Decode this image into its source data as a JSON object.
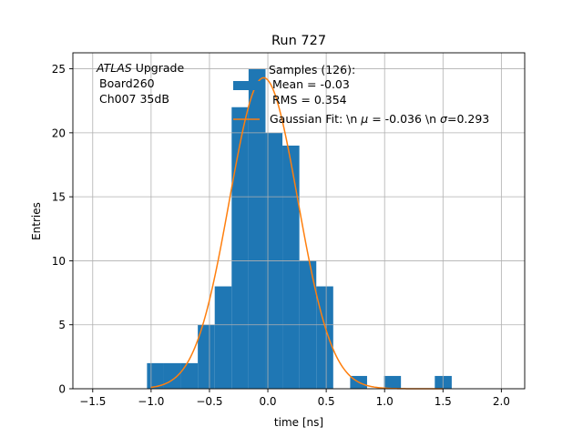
{
  "chart_data": {
    "type": "bar",
    "title": "Run 727",
    "xlabel": "time [ns]",
    "ylabel": "Entries",
    "xlim": [
      -1.67,
      2.2
    ],
    "ylim": [
      0,
      26.25
    ],
    "xticks": [
      -1.5,
      -1.0,
      -0.5,
      0.0,
      0.5,
      1.0,
      1.5,
      2.0
    ],
    "xtick_labels": [
      "−1.5",
      "−1.0",
      "−0.5",
      "0.0",
      "0.5",
      "1.0",
      "1.5",
      "2.0"
    ],
    "yticks": [
      0,
      5,
      10,
      15,
      20,
      25
    ],
    "ytick_labels": [
      "0",
      "5",
      "10",
      "15",
      "20",
      "25"
    ],
    "grid": true,
    "bin_width": 0.145,
    "bins": [
      {
        "x0": -1.035,
        "count": 2
      },
      {
        "x0": -0.89,
        "count": 2
      },
      {
        "x0": -0.745,
        "count": 2
      },
      {
        "x0": -0.6,
        "count": 5
      },
      {
        "x0": -0.455,
        "count": 8
      },
      {
        "x0": -0.31,
        "count": 22
      },
      {
        "x0": -0.165,
        "count": 25
      },
      {
        "x0": -0.02,
        "count": 20
      },
      {
        "x0": 0.125,
        "count": 19
      },
      {
        "x0": 0.27,
        "count": 10
      },
      {
        "x0": 0.415,
        "count": 8
      },
      {
        "x0": 0.705,
        "count": 1
      },
      {
        "x0": 0.995,
        "count": 1
      },
      {
        "x0": 1.43,
        "count": 1
      }
    ],
    "fit": {
      "name": "Gaussian Fit",
      "amplitude": 24.3,
      "mu": -0.036,
      "sigma": 0.293,
      "x_range": [
        -1.0,
        1.5
      ]
    },
    "colors": {
      "hist": "#1f77b4",
      "fit": "#ff7f0e",
      "grid": "#b0b0b0"
    },
    "annotation": {
      "line1_italic": "ATLAS",
      "line1_rest": " Upgrade",
      "line2": "Board260",
      "line3": "Ch007 35dB"
    },
    "legend": {
      "placement": "top-right",
      "hist_lines": [
        "Samples (126):",
        "Mean = -0.03",
        "RMS = 0.354"
      ],
      "fit_label_parts": [
        "Gaussian Fit: \\n ",
        "μ",
        " = -0.036 \\n ",
        "σ",
        "=0.293"
      ]
    }
  }
}
